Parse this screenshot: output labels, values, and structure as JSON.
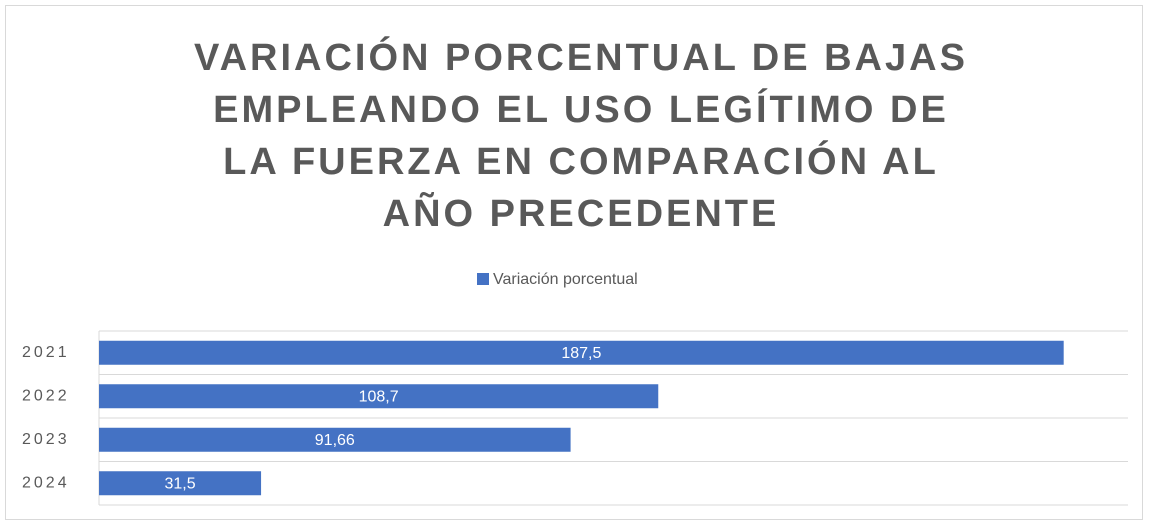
{
  "chart_data": {
    "type": "bar",
    "orientation": "horizontal",
    "title": "VARIACIÓN PORCENTUAL DE BAJAS EMPLEANDO EL USO LEGÍTIMO DE LA FUERZA EN COMPARACIÓN AL AÑO PRECEDENTE",
    "categories": [
      "2021",
      "2022",
      "2023",
      "2024"
    ],
    "series": [
      {
        "name": "Variación porcentual",
        "color": "#4472c4",
        "values": [
          187.5,
          108.7,
          91.66,
          31.5
        ],
        "value_labels": [
          "187,5",
          "108,7",
          "91,66",
          "31,5"
        ]
      }
    ],
    "xlim": [
      0,
      200
    ],
    "legend": "top"
  }
}
